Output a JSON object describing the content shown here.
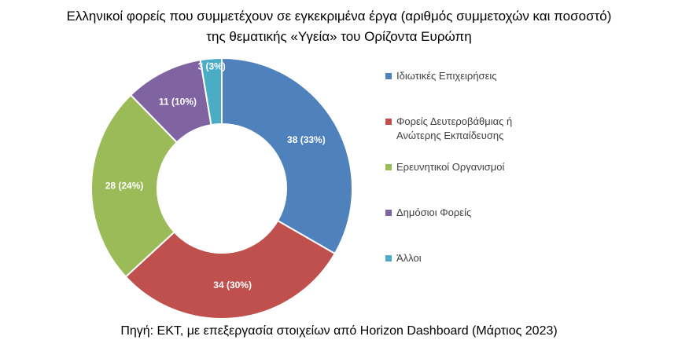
{
  "chart_data": {
    "type": "pie",
    "donut": true,
    "title_line1": "Ελληνικοί φορείς που συμμετέχουν σε εγκεκριμένα έργα (αριθμός συμμετοχών και ποσοστό)",
    "title_line2": "της θεματικής «Υγεία» του Ορίζοντα Ευρώπη",
    "categories": [
      "Ιδιωτικές Επιχειρήσεις",
      "Φορείς Δευτεροβάθμιας ή Ανώτερης Εκπαίδευσης",
      "Ερευνητικοί Οργανισμοί",
      "Δημόσιοι Φορείς",
      "Άλλοι"
    ],
    "values": [
      38,
      34,
      28,
      11,
      3
    ],
    "data_labels": [
      "38 (33%)",
      "34 (30%)",
      "28 (24%)",
      "11 (10%)",
      "3 (3%)"
    ],
    "colors": [
      "#4F81BD",
      "#C0504D",
      "#9BBB59",
      "#8064A2",
      "#4BACC6"
    ],
    "legend_position": "right"
  },
  "legend": {
    "items": [
      "Ιδιωτικές Επιχειρήσεις",
      "Φορείς Δευτεροβάθμιας ή Ανώτερης Εκπαίδευσης",
      "Ερευνητικοί Οργανισμοί",
      "Δημόσιοι Φορείς",
      "Άλλοι"
    ]
  },
  "source": "Πηγή: ΕΚΤ, με επεξεργασία στοιχείων από Horizon Dashboard (Μάρτιος 2023)"
}
